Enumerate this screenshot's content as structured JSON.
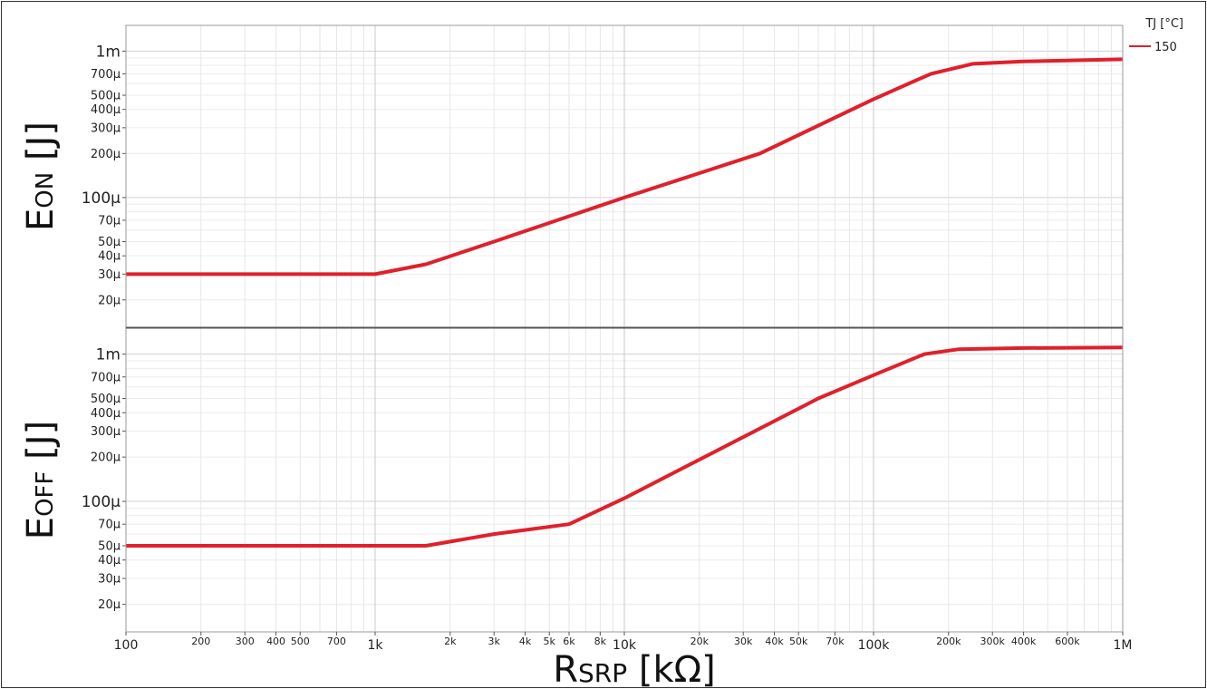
{
  "chart_data": [
    {
      "type": "line",
      "panel": "top",
      "ylabel_main": "E",
      "ylabel_sub": "ON",
      "ylabel_unit": " [J]",
      "xscale": "log",
      "yscale": "log",
      "xlim": [
        100,
        1000000
      ],
      "ylim": [
        1.3e-05,
        0.0015
      ],
      "grid": true,
      "yticks": [
        {
          "v": 0.001,
          "label": "1m",
          "major": true
        },
        {
          "v": 0.0007,
          "label": "700µ"
        },
        {
          "v": 0.0005,
          "label": "500µ"
        },
        {
          "v": 0.0004,
          "label": "400µ"
        },
        {
          "v": 0.0003,
          "label": "300µ"
        },
        {
          "v": 0.0002,
          "label": "200µ"
        },
        {
          "v": 0.0001,
          "label": "100µ",
          "major": true
        },
        {
          "v": 7e-05,
          "label": "70µ"
        },
        {
          "v": 5e-05,
          "label": "50µ"
        },
        {
          "v": 4e-05,
          "label": "40µ"
        },
        {
          "v": 3e-05,
          "label": "30µ"
        },
        {
          "v": 2e-05,
          "label": "20µ"
        }
      ],
      "series": [
        {
          "name": "150",
          "color": "#e0202a",
          "points": [
            [
              100,
              3e-05
            ],
            [
              1000,
              3e-05
            ],
            [
              1600,
              3.5e-05
            ],
            [
              3000,
              5e-05
            ],
            [
              10000,
              0.0001
            ],
            [
              35000,
              0.0002
            ],
            [
              100000,
              0.00047
            ],
            [
              170000,
              0.0007
            ],
            [
              250000,
              0.00082
            ],
            [
              400000,
              0.00085
            ],
            [
              1000000,
              0.00088
            ]
          ]
        }
      ]
    },
    {
      "type": "line",
      "panel": "bottom",
      "ylabel_main": "E",
      "ylabel_sub": "OFF",
      "ylabel_unit": " [J]",
      "xscale": "log",
      "yscale": "log",
      "xlim": [
        100,
        1000000
      ],
      "ylim": [
        1.3e-05,
        0.0015
      ],
      "grid": true,
      "yticks": [
        {
          "v": 0.001,
          "label": "1m",
          "major": true
        },
        {
          "v": 0.0007,
          "label": "700µ"
        },
        {
          "v": 0.0005,
          "label": "500µ"
        },
        {
          "v": 0.0004,
          "label": "400µ"
        },
        {
          "v": 0.0003,
          "label": "300µ"
        },
        {
          "v": 0.0002,
          "label": "200µ"
        },
        {
          "v": 0.0001,
          "label": "100µ",
          "major": true
        },
        {
          "v": 7e-05,
          "label": "70µ"
        },
        {
          "v": 5e-05,
          "label": "50µ"
        },
        {
          "v": 4e-05,
          "label": "40µ"
        },
        {
          "v": 3e-05,
          "label": "30µ"
        },
        {
          "v": 2e-05,
          "label": "20µ"
        }
      ],
      "series": [
        {
          "name": "150",
          "color": "#e0202a",
          "points": [
            [
              100,
              5e-05
            ],
            [
              1600,
              5e-05
            ],
            [
              3000,
              6e-05
            ],
            [
              6000,
              7e-05
            ],
            [
              10000,
              0.000105
            ],
            [
              60000,
              0.0005
            ],
            [
              100000,
              0.00072
            ],
            [
              160000,
              0.001
            ],
            [
              220000,
              0.00108
            ],
            [
              400000,
              0.0011
            ],
            [
              1000000,
              0.00111
            ]
          ]
        }
      ]
    }
  ],
  "xaxis": {
    "label_main": "R",
    "label_sub": "SRP",
    "label_unit": " [kΩ]",
    "ticks": [
      {
        "v": 100,
        "label": "100",
        "major": true
      },
      {
        "v": 200,
        "label": "200"
      },
      {
        "v": 300,
        "label": "300"
      },
      {
        "v": 400,
        "label": "400"
      },
      {
        "v": 500,
        "label": "500"
      },
      {
        "v": 700,
        "label": "700"
      },
      {
        "v": 1000,
        "label": "1k",
        "major": true
      },
      {
        "v": 2000,
        "label": "2k"
      },
      {
        "v": 3000,
        "label": "3k"
      },
      {
        "v": 4000,
        "label": "4k"
      },
      {
        "v": 5000,
        "label": "5k"
      },
      {
        "v": 6000,
        "label": "6k"
      },
      {
        "v": 8000,
        "label": "8k"
      },
      {
        "v": 10000,
        "label": "10k",
        "major": true
      },
      {
        "v": 20000,
        "label": "20k"
      },
      {
        "v": 30000,
        "label": "30k"
      },
      {
        "v": 40000,
        "label": "40k"
      },
      {
        "v": 50000,
        "label": "50k"
      },
      {
        "v": 70000,
        "label": "70k"
      },
      {
        "v": 100000,
        "label": "100k",
        "major": true
      },
      {
        "v": 200000,
        "label": "200k"
      },
      {
        "v": 300000,
        "label": "300k"
      },
      {
        "v": 400000,
        "label": "400k"
      },
      {
        "v": 600000,
        "label": "600k"
      },
      {
        "v": 1000000,
        "label": "1M",
        "major": true
      }
    ]
  },
  "legend": {
    "title": "TJ [°C]",
    "placement": "top-right",
    "items": [
      {
        "label": "150",
        "color": "#e0202a"
      }
    ]
  }
}
